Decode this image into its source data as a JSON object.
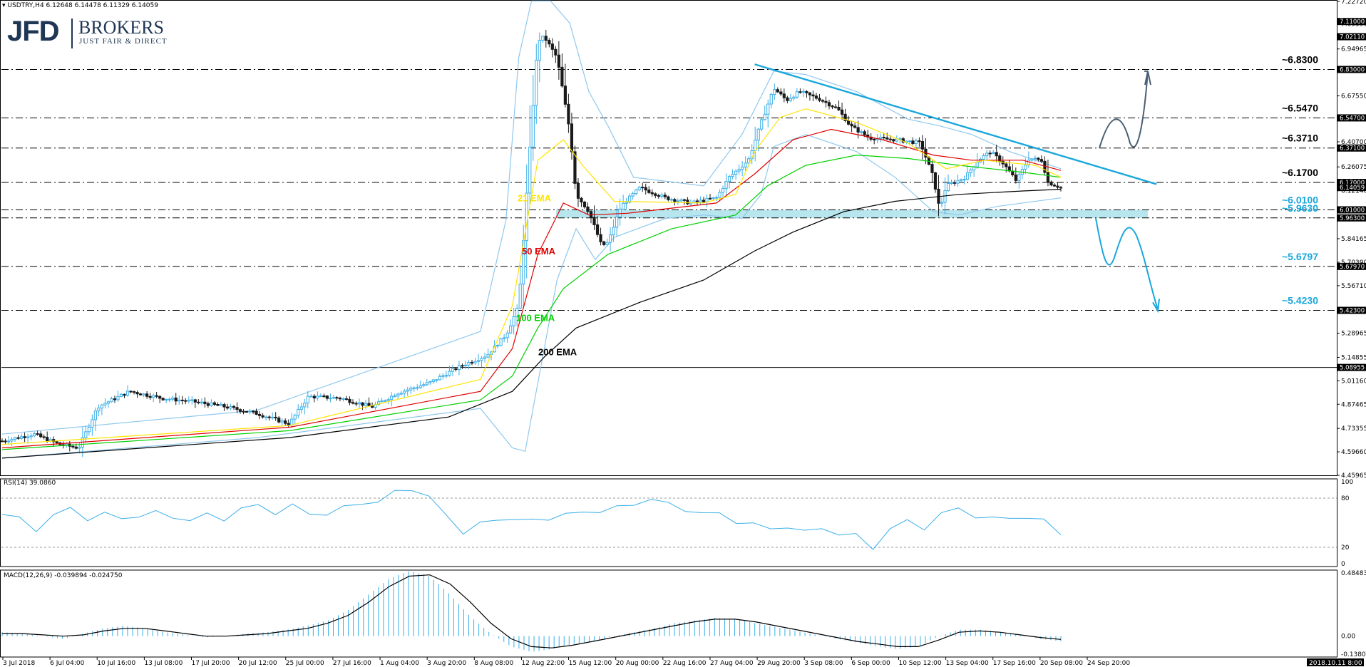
{
  "header": {
    "symbol_line": "USDTRY,H4  6.12648 6.14478 6.11329 6.14059",
    "rsi_label": "RSI(14) 39.0860",
    "macd_label": "MACD(12,26,9) -0.039894 -0.024750"
  },
  "logo": {
    "brand": "JFD",
    "brokers": "BROKERS",
    "tagline": "JUST FAIR & DIRECT"
  },
  "colors": {
    "candle_up": "#3aaee8",
    "candle_down": "#1a1a1a",
    "ema21": "#ffe400",
    "ema50": "#e00000",
    "ema100": "#00d000",
    "ema200": "#000000",
    "bollinger": "#8fc8ee",
    "trendline": "#1aa7dc",
    "zone_fill": "#b7e6ee",
    "arrow_up": "#4a6074",
    "arrow_down": "#1aa7dc",
    "level_black": "#000000",
    "level_blue": "#1aa7dc"
  },
  "chart_data": [
    {
      "type": "candlestick",
      "title": "USDTRY,H4",
      "ylim": [
        4.45965,
        7.2272
      ],
      "price_axis_ticks": [
        "7.22720",
        "7.09590",
        "6.94965",
        "6.82830",
        "6.67550",
        "6.54470",
        "6.40700",
        "6.26075",
        "6.12140",
        "5.96430",
        "5.84165",
        "5.70390",
        "5.56710",
        "5.42230",
        "5.28965",
        "5.14855",
        "5.01160",
        "4.87465",
        "4.73355",
        "4.59660",
        "4.45965"
      ],
      "price_flags": [
        "7.11000",
        "7.02110",
        "6.83000",
        "6.54700",
        "6.37100",
        "6.17000",
        "6.14059",
        "6.01000",
        "5.96300",
        "5.67970",
        "5.42300",
        "5.08955"
      ],
      "x_labels": [
        "3 Jul 2018",
        "6 Jul 04:00",
        "10 Jul 16:00",
        "13 Jul 08:00",
        "17 Jul 20:00",
        "20 Jul 12:00",
        "25 Jul 00:00",
        "27 Jul 16:00",
        "1 Aug 04:00",
        "3 Aug 20:00",
        "8 Aug 08:00",
        "12 Aug 22:00",
        "15 Aug 12:00",
        "20 Aug 00:00",
        "22 Aug 16:00",
        "27 Aug 04:00",
        "29 Aug 20:00",
        "3 Sep 08:00",
        "6 Sep 00:00",
        "10 Sep 12:00",
        "13 Sep 04:00",
        "17 Sep 16:00",
        "20 Sep 08:00",
        "24 Sep 20:00"
      ],
      "timestamp_badge": "2018.10.11 8:00",
      "close_path": [
        [
          0,
          4.66
        ],
        [
          5,
          4.7
        ],
        [
          9,
          4.64
        ],
        [
          12,
          4.62
        ],
        [
          15,
          4.86
        ],
        [
          20,
          4.95
        ],
        [
          25,
          4.91
        ],
        [
          30,
          4.89
        ],
        [
          35,
          4.86
        ],
        [
          40,
          4.82
        ],
        [
          45,
          4.76
        ],
        [
          48,
          4.92
        ],
        [
          53,
          4.91
        ],
        [
          58,
          4.86
        ],
        [
          62,
          4.94
        ],
        [
          67,
          5.0
        ],
        [
          72,
          5.1
        ],
        [
          76,
          5.16
        ],
        [
          79,
          5.28
        ],
        [
          81,
          5.45
        ],
        [
          83,
          6.5
        ],
        [
          84,
          7.0
        ],
        [
          85,
          7.02
        ],
        [
          87,
          6.9
        ],
        [
          89,
          6.47
        ],
        [
          90,
          6.1
        ],
        [
          92,
          6.0
        ],
        [
          94,
          5.8
        ],
        [
          95,
          5.82
        ],
        [
          97,
          6.03
        ],
        [
          100,
          6.14
        ],
        [
          104,
          6.08
        ],
        [
          108,
          6.05
        ],
        [
          112,
          6.08
        ],
        [
          114,
          6.2
        ],
        [
          117,
          6.3
        ],
        [
          119,
          6.52
        ],
        [
          121,
          6.72
        ],
        [
          123,
          6.65
        ],
        [
          125,
          6.7
        ],
        [
          128,
          6.66
        ],
        [
          131,
          6.6
        ],
        [
          133,
          6.5
        ],
        [
          136,
          6.43
        ],
        [
          140,
          6.42
        ],
        [
          144,
          6.4
        ],
        [
          146,
          6.2
        ],
        [
          147,
          6.01
        ],
        [
          148,
          6.15
        ],
        [
          151,
          6.2
        ],
        [
          153,
          6.3
        ],
        [
          155,
          6.35
        ],
        [
          157,
          6.28
        ],
        [
          159,
          6.18
        ],
        [
          161,
          6.31
        ],
        [
          163,
          6.3
        ],
        [
          164,
          6.17
        ],
        [
          166,
          6.14
        ]
      ],
      "ema21_path": [
        [
          0,
          4.64
        ],
        [
          45,
          4.75
        ],
        [
          75,
          5.02
        ],
        [
          80,
          5.45
        ],
        [
          84,
          6.3
        ],
        [
          88,
          6.42
        ],
        [
          91,
          6.27
        ],
        [
          96,
          6.06
        ],
        [
          110,
          6.05
        ],
        [
          115,
          6.1
        ],
        [
          118,
          6.35
        ],
        [
          122,
          6.55
        ],
        [
          126,
          6.6
        ],
        [
          134,
          6.52
        ],
        [
          142,
          6.4
        ],
        [
          148,
          6.25
        ],
        [
          154,
          6.3
        ],
        [
          162,
          6.27
        ],
        [
          166,
          6.2
        ]
      ],
      "ema50_path": [
        [
          0,
          4.62
        ],
        [
          45,
          4.74
        ],
        [
          75,
          4.95
        ],
        [
          80,
          5.2
        ],
        [
          84,
          5.75
        ],
        [
          88,
          6.05
        ],
        [
          92,
          5.98
        ],
        [
          98,
          5.99
        ],
        [
          112,
          6.05
        ],
        [
          118,
          6.22
        ],
        [
          124,
          6.42
        ],
        [
          130,
          6.48
        ],
        [
          138,
          6.42
        ],
        [
          146,
          6.33
        ],
        [
          152,
          6.3
        ],
        [
          160,
          6.3
        ],
        [
          166,
          6.24
        ]
      ],
      "ema100_path": [
        [
          0,
          4.61
        ],
        [
          45,
          4.72
        ],
        [
          75,
          4.9
        ],
        [
          80,
          5.04
        ],
        [
          84,
          5.32
        ],
        [
          88,
          5.55
        ],
        [
          95,
          5.75
        ],
        [
          105,
          5.9
        ],
        [
          115,
          5.98
        ],
        [
          120,
          6.15
        ],
        [
          126,
          6.27
        ],
        [
          134,
          6.33
        ],
        [
          142,
          6.31
        ],
        [
          150,
          6.27
        ],
        [
          160,
          6.23
        ],
        [
          166,
          6.2
        ]
      ],
      "ema200_path": [
        [
          0,
          4.56
        ],
        [
          45,
          4.68
        ],
        [
          70,
          4.8
        ],
        [
          80,
          4.95
        ],
        [
          85,
          5.15
        ],
        [
          90,
          5.32
        ],
        [
          100,
          5.47
        ],
        [
          110,
          5.6
        ],
        [
          118,
          5.77
        ],
        [
          124,
          5.88
        ],
        [
          132,
          6.0
        ],
        [
          140,
          6.06
        ],
        [
          150,
          6.1
        ],
        [
          160,
          6.12
        ],
        [
          166,
          6.13
        ]
      ],
      "bb_upper_path": [
        [
          0,
          4.7
        ],
        [
          40,
          4.84
        ],
        [
          75,
          5.3
        ],
        [
          79,
          5.95
        ],
        [
          81,
          6.9
        ],
        [
          83,
          7.23
        ],
        [
          86,
          7.23
        ],
        [
          89,
          7.1
        ],
        [
          92,
          6.7
        ],
        [
          95,
          6.5
        ],
        [
          99,
          6.2
        ],
        [
          110,
          6.15
        ],
        [
          116,
          6.45
        ],
        [
          121,
          6.82
        ],
        [
          126,
          6.8
        ],
        [
          134,
          6.7
        ],
        [
          142,
          6.54
        ],
        [
          147,
          6.5
        ],
        [
          152,
          6.45
        ],
        [
          158,
          6.35
        ],
        [
          166,
          6.25
        ]
      ],
      "bb_lower_path": [
        [
          0,
          4.56
        ],
        [
          40,
          4.68
        ],
        [
          75,
          4.85
        ],
        [
          80,
          4.62
        ],
        [
          82,
          4.6
        ],
        [
          84,
          5.0
        ],
        [
          87,
          5.6
        ],
        [
          90,
          5.9
        ],
        [
          93,
          5.72
        ],
        [
          96,
          5.85
        ],
        [
          104,
          5.96
        ],
        [
          110,
          5.98
        ],
        [
          116,
          5.96
        ],
        [
          119,
          6.1
        ],
        [
          121,
          6.38
        ],
        [
          126,
          6.45
        ],
        [
          134,
          6.35
        ],
        [
          140,
          6.2
        ],
        [
          146,
          6.0
        ],
        [
          150,
          5.98
        ],
        [
          156,
          6.03
        ],
        [
          166,
          6.08
        ]
      ],
      "indicator_labels": [
        {
          "text": "21 EMA",
          "price": 6.06,
          "color_key": "ema21"
        },
        {
          "text": "50 EMA",
          "price": 5.75,
          "color_key": "ema50"
        },
        {
          "text": "100 EMA",
          "price": 5.36,
          "color_key": "ema100"
        },
        {
          "text": "200 EMA",
          "price": 5.16,
          "color_key": "ema200"
        }
      ],
      "levels": [
        {
          "label": "~6.8300",
          "price": 6.83,
          "color_key": "level_black"
        },
        {
          "label": "~6.5470",
          "price": 6.547,
          "color_key": "level_black"
        },
        {
          "label": "~6.3710",
          "price": 6.371,
          "color_key": "level_black"
        },
        {
          "label": "~6.1700",
          "price": 6.17,
          "color_key": "level_black"
        },
        {
          "label": "~6.0100",
          "price": 6.01,
          "color_key": "level_blue"
        },
        {
          "label": "~5.9630",
          "price": 5.963,
          "color_key": "level_blue"
        },
        {
          "label": "~5.6797",
          "price": 5.6797,
          "color_key": "level_blue"
        },
        {
          "label": "~5.4230",
          "price": 5.423,
          "color_key": "level_blue"
        }
      ],
      "support_zone": [
        5.963,
        6.01
      ],
      "trendline": [
        [
          118,
          6.86
        ],
        [
          181,
          6.16
        ]
      ]
    },
    {
      "type": "line",
      "title": "RSI(14) 39.0860",
      "ylim": [
        0,
        100
      ],
      "axis_ticks": [
        "100",
        "80",
        "20",
        "0"
      ],
      "reference_lines": [
        80,
        20
      ],
      "values": [
        60,
        55,
        42,
        58,
        68,
        55,
        60,
        56,
        58,
        62,
        58,
        52,
        60,
        55,
        66,
        72,
        62,
        70,
        62,
        60,
        68,
        75,
        74,
        88,
        92,
        80,
        60,
        38,
        48,
        55,
        54,
        52,
        56,
        60,
        62,
        65,
        68,
        72,
        80,
        72,
        66,
        62,
        60,
        52,
        48,
        42,
        46,
        38,
        44,
        36,
        34,
        20,
        42,
        52,
        44,
        60,
        68,
        58,
        54,
        57,
        56,
        52,
        38
      ]
    },
    {
      "type": "bar",
      "title": "MACD(12,26,9) -0.039894 -0.024750",
      "ylim": [
        -0.13805,
        0.484832
      ],
      "axis_ticks": [
        "0.484832",
        "0.00",
        "-0.138051"
      ],
      "histogram": [
        0.03,
        0.02,
        0.0,
        -0.02,
        0.02,
        0.06,
        0.08,
        0.06,
        0.03,
        0.01,
        -0.01,
        0.0,
        0.02,
        0.03,
        0.05,
        0.08,
        0.12,
        0.2,
        0.32,
        0.44,
        0.5,
        0.46,
        0.32,
        0.15,
        0.02,
        -0.08,
        -0.12,
        -0.1,
        -0.06,
        -0.04,
        0.0,
        0.03,
        0.06,
        0.1,
        0.12,
        0.14,
        0.13,
        0.1,
        0.07,
        0.04,
        0.01,
        -0.02,
        -0.05,
        -0.08,
        -0.1,
        -0.08,
        0.0,
        0.05,
        0.05,
        0.03,
        0.01,
        -0.02,
        -0.04
      ],
      "signal": [
        0.02,
        0.02,
        0.01,
        0.0,
        0.01,
        0.04,
        0.06,
        0.06,
        0.04,
        0.02,
        0.0,
        0.0,
        0.01,
        0.02,
        0.04,
        0.06,
        0.1,
        0.16,
        0.26,
        0.38,
        0.46,
        0.47,
        0.4,
        0.26,
        0.1,
        -0.02,
        -0.08,
        -0.09,
        -0.07,
        -0.04,
        -0.01,
        0.02,
        0.05,
        0.08,
        0.11,
        0.13,
        0.13,
        0.11,
        0.08,
        0.05,
        0.02,
        -0.01,
        -0.04,
        -0.06,
        -0.08,
        -0.08,
        -0.03,
        0.03,
        0.04,
        0.03,
        0.01,
        -0.01,
        -0.025
      ]
    }
  ]
}
